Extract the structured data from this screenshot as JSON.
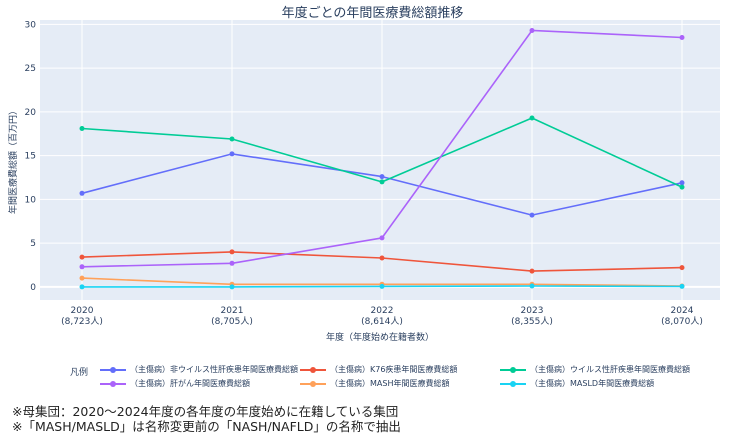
{
  "chart_data": {
    "type": "line",
    "title": "年度ごとの年間医療費総額推移",
    "xlabel": "年度（年度始め在籍者数）",
    "ylabel": "年間医療費総額（百万円）",
    "categories": [
      {
        "year": "2020",
        "count": "(8,723人)"
      },
      {
        "year": "2021",
        "count": "(8,705人)"
      },
      {
        "year": "2022",
        "count": "(8,614人)"
      },
      {
        "year": "2023",
        "count": "(8,355人)"
      },
      {
        "year": "2024",
        "count": "(8,070人)"
      }
    ],
    "ylim": [
      -1.5,
      30.5
    ],
    "yticks": [
      0,
      5,
      10,
      15,
      20,
      25,
      30
    ],
    "grid": true,
    "legend_title": "凡例",
    "legend_position": "bottom",
    "series": [
      {
        "name": "（主傷病）非ウイルス性肝疾患年間医療費総額",
        "color": "#636efa",
        "values": [
          10.7,
          15.2,
          12.6,
          8.2,
          11.9
        ]
      },
      {
        "name": "（主傷病）K76疾患年間医療費総額",
        "color": "#ef553b",
        "values": [
          3.4,
          4.0,
          3.3,
          1.8,
          2.2
        ]
      },
      {
        "name": "（主傷病）ウイルス性肝疾患年間医療費総額",
        "color": "#00cc96",
        "values": [
          18.1,
          16.9,
          12.0,
          19.3,
          11.4
        ]
      },
      {
        "name": "（主傷病）肝がん年間医療費総額",
        "color": "#ab63fa",
        "values": [
          2.3,
          2.7,
          5.6,
          29.3,
          28.5
        ]
      },
      {
        "name": "（主傷病）MASH年間医療費総額",
        "color": "#ffa15a",
        "values": [
          1.0,
          0.3,
          0.3,
          0.3,
          0.1
        ]
      },
      {
        "name": "（主傷病）MASLD年間医療費総額",
        "color": "#19d3f3",
        "values": [
          0.0,
          0.0,
          0.05,
          0.1,
          0.05
        ]
      }
    ]
  },
  "footnotes": [
    "※母集団：2020～2024年度の各年度の年度始めに在籍している集団",
    "※「MASH/MASLD」は名称変更前の「NASH/NAFLD」の名称で抽出"
  ]
}
